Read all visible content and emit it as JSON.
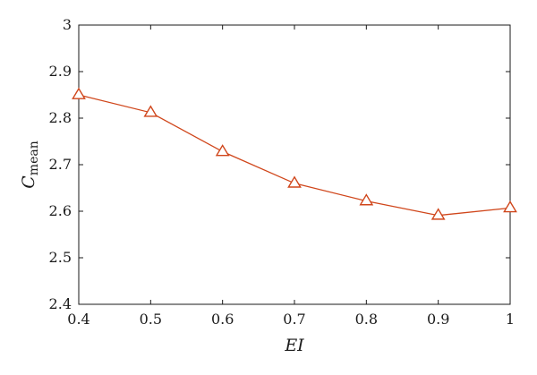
{
  "chart_data": {
    "type": "line",
    "title": "",
    "xlabel": "EI",
    "ylabel": {
      "main": "C",
      "sub": "mean"
    },
    "xlim": [
      0.4,
      1.0
    ],
    "ylim": [
      2.4,
      3.0
    ],
    "x_ticks": [
      "0.4",
      "0.5",
      "0.6",
      "0.7",
      "0.8",
      "0.9",
      "1"
    ],
    "y_ticks": [
      "2.4",
      "2.5",
      "2.6",
      "2.7",
      "2.8",
      "2.9",
      "3"
    ],
    "grid": false,
    "legend": "none",
    "series": [
      {
        "marker": "triangle-open",
        "color": "#d0461b",
        "x": [
          0.4,
          0.5,
          0.6,
          0.7,
          0.8,
          0.9,
          1.0
        ],
        "y": [
          2.85,
          2.812,
          2.728,
          2.66,
          2.622,
          2.591,
          2.607
        ]
      }
    ]
  }
}
